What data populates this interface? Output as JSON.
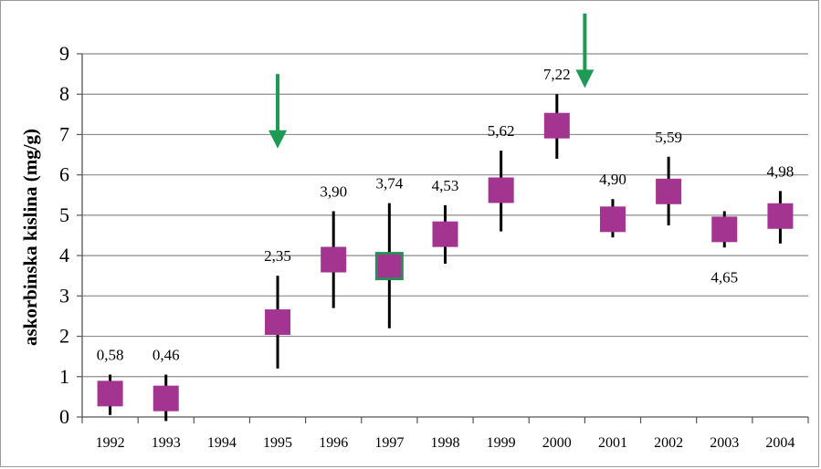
{
  "chart_data": {
    "type": "scatter",
    "x": [
      "1992",
      "1993",
      "1994",
      "1995",
      "1996",
      "1997",
      "1998",
      "1999",
      "2000",
      "2001",
      "2002",
      "2003",
      "2004"
    ],
    "values": [
      0.58,
      0.46,
      null,
      2.35,
      3.9,
      3.74,
      4.53,
      5.62,
      7.22,
      4.9,
      5.59,
      4.65,
      4.98
    ],
    "data_labels": [
      "0,58",
      "0,46",
      "",
      "2,35",
      "3,90",
      "3,74",
      "4,53",
      "5,62",
      "7,22",
      "4,90",
      "5,59",
      "4,65",
      "4,98"
    ],
    "error_low": [
      0.05,
      -0.1,
      null,
      1.2,
      2.7,
      2.2,
      3.8,
      4.6,
      6.4,
      4.45,
      4.75,
      4.2,
      4.3
    ],
    "error_high": [
      1.05,
      1.05,
      null,
      3.5,
      5.1,
      5.3,
      5.25,
      6.6,
      8.0,
      5.4,
      6.45,
      5.1,
      5.6
    ],
    "ylabel": "askorbinska kislina (mg/g)",
    "xlabel": "",
    "title": "",
    "ylim": [
      0,
      9
    ],
    "yticks": [
      "0",
      "1",
      "2",
      "3",
      "4",
      "5",
      "6",
      "7",
      "8",
      "9"
    ],
    "grid": true,
    "marker": "square",
    "arrows": [
      {
        "x": "1995",
        "from_y": 8.5,
        "to_y": 6.7
      },
      {
        "x": "2000",
        "from_y": 10.0,
        "to_y": 8.2
      }
    ],
    "colors": {
      "marker": "#a33590",
      "highlight_border": "#2e8b57",
      "error_bar": "#000000",
      "arrow": "#1e9a55",
      "grid": "#8c8c8c"
    }
  }
}
